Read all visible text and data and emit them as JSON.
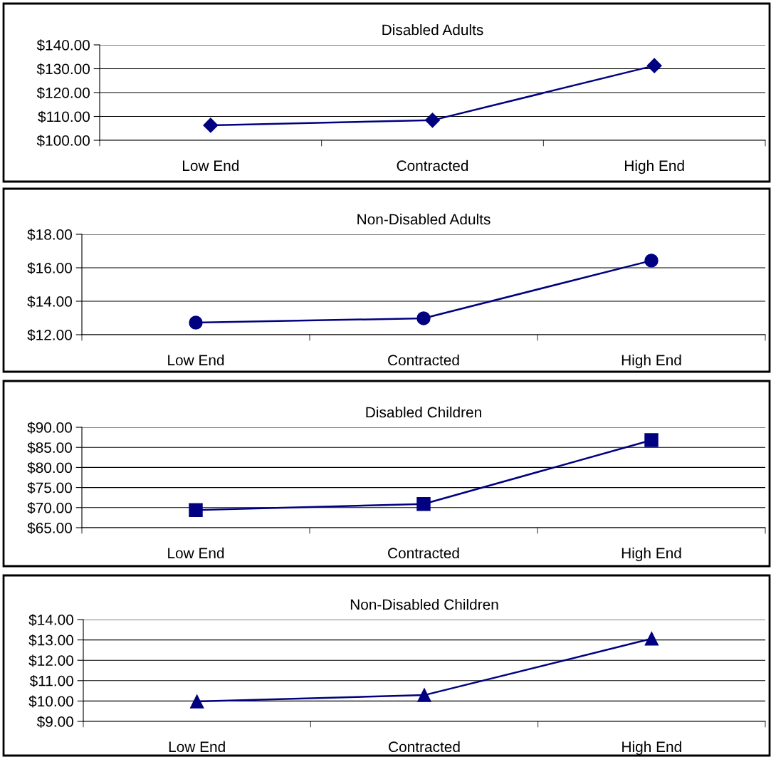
{
  "chart_data": [
    {
      "type": "line",
      "title": "Disabled Adults",
      "categories": [
        "Low End",
        "Contracted",
        "High End"
      ],
      "series": [
        {
          "color": "#000080",
          "values": [
            106.3,
            108.4,
            131.3
          ]
        }
      ],
      "marker": "diamond",
      "line_style": "solid",
      "grid": "y",
      "ylim": [
        100,
        140
      ],
      "yticks": [
        {
          "value": 100,
          "label": "$100.00"
        },
        {
          "value": 110,
          "label": "$110.00"
        },
        {
          "value": 120,
          "label": "$120.00"
        },
        {
          "value": 130,
          "label": "$130.00"
        },
        {
          "value": 140,
          "label": "$140.00"
        }
      ]
    },
    {
      "type": "line",
      "title": "Non-Disabled Adults",
      "categories": [
        "Low End",
        "Contracted",
        "High End"
      ],
      "series": [
        {
          "color": "#000080",
          "values": [
            12.72,
            12.98,
            16.43
          ]
        }
      ],
      "marker": "circle",
      "line_style": "solid",
      "grid": "y",
      "ylim": [
        12,
        18
      ],
      "yticks": [
        {
          "value": 12,
          "label": "$12.00"
        },
        {
          "value": 14,
          "label": "$14.00"
        },
        {
          "value": 16,
          "label": "$16.00"
        },
        {
          "value": 18,
          "label": "$18.00"
        }
      ]
    },
    {
      "type": "line",
      "title": "Disabled Children",
      "categories": [
        "Low End",
        "Contracted",
        "High End"
      ],
      "series": [
        {
          "color": "#000080",
          "values": [
            69.4,
            70.9,
            86.8
          ]
        }
      ],
      "marker": "square",
      "line_style": "solid",
      "grid": "y",
      "ylim": [
        65,
        90
      ],
      "yticks": [
        {
          "value": 65,
          "label": "$65.00"
        },
        {
          "value": 70,
          "label": "$70.00"
        },
        {
          "value": 75,
          "label": "$75.00"
        },
        {
          "value": 80,
          "label": "$80.00"
        },
        {
          "value": 85,
          "label": "$85.00"
        },
        {
          "value": 90,
          "label": "$90.00"
        }
      ]
    },
    {
      "type": "line",
      "title": "Non-Disabled Children",
      "categories": [
        "Low End",
        "Contracted",
        "High End"
      ],
      "series": [
        {
          "color": "#000080",
          "values": [
            9.98,
            10.29,
            13.06
          ]
        }
      ],
      "marker": "triangle",
      "line_style": "solid",
      "grid": "y",
      "ylim": [
        9,
        14
      ],
      "yticks": [
        {
          "value": 9,
          "label": "$9.00"
        },
        {
          "value": 10,
          "label": "$10.00"
        },
        {
          "value": 11,
          "label": "$11.00"
        },
        {
          "value": 12,
          "label": "$12.00"
        },
        {
          "value": 13,
          "label": "$13.00"
        },
        {
          "value": 14,
          "label": "$14.00"
        }
      ]
    }
  ]
}
